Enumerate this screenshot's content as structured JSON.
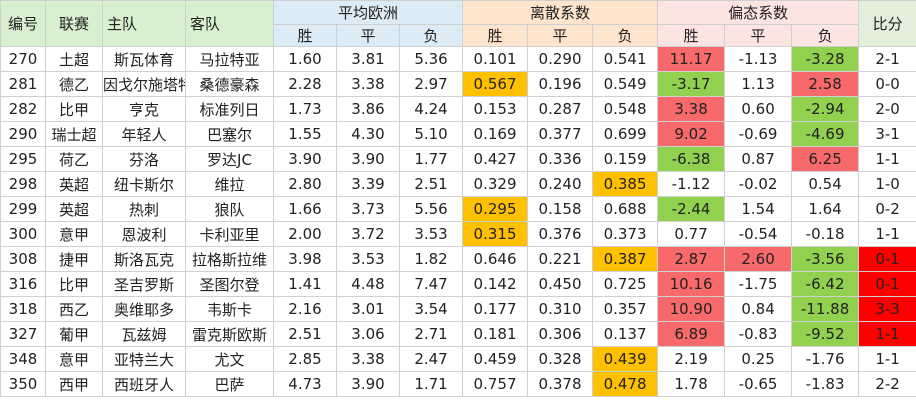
{
  "header": {
    "row1": [
      "编号",
      "联赛",
      "主队",
      "客队",
      "平均欧洲",
      "离散系数",
      "偏态系数",
      "比分"
    ],
    "row2": [
      "胜",
      "平",
      "负",
      "胜",
      "平",
      "负",
      "胜",
      "平",
      "负"
    ]
  },
  "table": {
    "rows": [
      [
        "270",
        "土超",
        "斯瓦体育",
        "马拉特亚",
        "1.60",
        "3.81",
        "5.36",
        "0.101",
        "0.290",
        "0.541",
        "11.17",
        "-1.13",
        "-3.28",
        "2-1"
      ],
      [
        "281",
        "德乙",
        "因戈尔施塔特",
        "桑德豪森",
        "2.28",
        "3.38",
        "2.97",
        "0.567",
        "0.196",
        "0.549",
        "-3.17",
        "1.13",
        "2.58",
        "0-0"
      ],
      [
        "282",
        "比甲",
        "亨克",
        "标准列日",
        "1.73",
        "3.86",
        "4.24",
        "0.153",
        "0.287",
        "0.548",
        "3.38",
        "0.60",
        "-2.94",
        "2-0"
      ],
      [
        "290",
        "瑞士超",
        "年轻人",
        "巴塞尔",
        "1.55",
        "4.30",
        "5.10",
        "0.169",
        "0.377",
        "0.699",
        "9.02",
        "-0.69",
        "-4.69",
        "3-1"
      ],
      [
        "295",
        "荷乙",
        "芬洛",
        "罗达JC",
        "3.90",
        "3.90",
        "1.77",
        "0.427",
        "0.336",
        "0.159",
        "-6.38",
        "0.87",
        "6.25",
        "1-1"
      ],
      [
        "298",
        "英超",
        "纽卡斯尔",
        "维拉",
        "2.80",
        "3.39",
        "2.51",
        "0.329",
        "0.240",
        "0.385",
        "-1.12",
        "-0.02",
        "0.54",
        "1-0"
      ],
      [
        "299",
        "英超",
        "热刺",
        "狼队",
        "1.66",
        "3.73",
        "5.56",
        "0.295",
        "0.158",
        "0.688",
        "-2.44",
        "1.54",
        "1.64",
        "0-2"
      ],
      [
        "300",
        "意甲",
        "恩波利",
        "卡利亚里",
        "2.00",
        "3.72",
        "3.53",
        "0.315",
        "0.376",
        "0.373",
        "0.77",
        "-0.54",
        "-0.18",
        "1-1"
      ],
      [
        "308",
        "捷甲",
        "斯洛瓦克",
        "拉格斯拉维",
        "3.98",
        "3.53",
        "1.82",
        "0.646",
        "0.221",
        "0.387",
        "2.87",
        "2.60",
        "-3.56",
        "0-1"
      ],
      [
        "316",
        "比甲",
        "圣吉罗斯",
        "圣图尔登",
        "1.41",
        "4.48",
        "7.47",
        "0.142",
        "0.450",
        "0.725",
        "10.16",
        "-1.75",
        "-6.42",
        "0-1"
      ],
      [
        "318",
        "西乙",
        "奥维耶多",
        "韦斯卡",
        "2.16",
        "3.01",
        "3.54",
        "0.177",
        "0.310",
        "0.357",
        "10.90",
        "0.84",
        "-11.88",
        "3-3"
      ],
      [
        "327",
        "葡甲",
        "瓦兹姆",
        "雷克斯欧斯",
        "2.51",
        "3.06",
        "2.71",
        "0.181",
        "0.306",
        "0.137",
        "6.89",
        "-0.83",
        "-9.52",
        "1-1"
      ],
      [
        "348",
        "意甲",
        "亚特兰大",
        "尤文",
        "2.85",
        "3.38",
        "2.47",
        "0.459",
        "0.328",
        "0.439",
        "2.19",
        "0.25",
        "-1.76",
        "1-1"
      ],
      [
        "350",
        "西甲",
        "西班牙人",
        "巴萨",
        "4.73",
        "3.90",
        "1.71",
        "0.757",
        "0.378",
        "0.478",
        "1.78",
        "-0.65",
        "-1.83",
        "2-2"
      ]
    ]
  }
}
